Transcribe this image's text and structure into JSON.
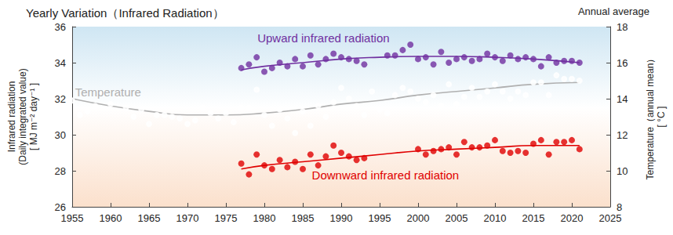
{
  "chart_data": {
    "type": "scatter",
    "title": "Yearly Variation（Infrared Radiation）",
    "subtitle": "Annual average",
    "y_label": "Infrared radiation\n(Daily integrated value)\n[ MJ m⁻² day⁻¹ ]",
    "y2_label": "Temperature（annual mean）\n[ °C ]",
    "xlim": [
      1955,
      2025
    ],
    "xticks": [
      1955,
      1960,
      1965,
      1970,
      1975,
      1980,
      1985,
      1990,
      1995,
      2000,
      2005,
      2010,
      2015,
      2020,
      2025
    ],
    "ylim": [
      26,
      36
    ],
    "yticks": [
      26,
      28,
      30,
      32,
      34,
      36
    ],
    "y2lim": [
      8,
      18
    ],
    "y2ticks": [
      8,
      10,
      12,
      14,
      16,
      18
    ],
    "grid": false,
    "series": [
      {
        "name": "Upward infrared radiation",
        "color": "#7030a0",
        "marker": "circle",
        "x": [
          1977,
          1978,
          1979,
          1980,
          1981,
          1982,
          1983,
          1984,
          1985,
          1986,
          1987,
          1988,
          1989,
          1990,
          1991,
          1992,
          1993,
          1994,
          1995,
          1996,
          1997,
          1998,
          1999,
          2000,
          2001,
          2002,
          2003,
          2004,
          2005,
          2006,
          2007,
          2008,
          2009,
          2010,
          2011,
          2012,
          2013,
          2014,
          2015,
          2016,
          2017,
          2018,
          2019,
          2020,
          2021
        ],
        "values": [
          33.7,
          33.9,
          34.3,
          33.5,
          33.7,
          34.0,
          33.8,
          34.2,
          33.8,
          34.4,
          33.9,
          34.2,
          34.5,
          34.3,
          34.2,
          34.1,
          33.9,
          null,
          null,
          34.4,
          34.4,
          34.7,
          35.0,
          34.2,
          34.3,
          33.9,
          34.6,
          34.0,
          34.2,
          34.3,
          34.1,
          34.2,
          34.5,
          34.3,
          34.1,
          34.4,
          34.2,
          34.3,
          34.2,
          33.8,
          34.3,
          34.0,
          34.1,
          34.1,
          34.0
        ],
        "trend": {
          "x": [
            1977,
            1980,
            1985,
            1990,
            1995,
            2000,
            2005,
            2010,
            2015,
            2021
          ],
          "values": [
            33.6,
            33.8,
            34.0,
            34.2,
            34.3,
            34.35,
            34.35,
            34.3,
            34.2,
            34.0
          ]
        }
      },
      {
        "name": "Temperature",
        "color": "#b0b0b0",
        "marker": "open_circle",
        "axis": "y2",
        "x": [
          1955,
          1956,
          1957,
          1958,
          1959,
          1960,
          1961,
          1962,
          1963,
          1964,
          1965,
          1966,
          1967,
          1968,
          1969,
          1970,
          1971,
          1972,
          1973,
          1974,
          1975,
          1976,
          1977,
          1978,
          1979,
          1980,
          1981,
          1982,
          1983,
          1984,
          1985,
          1986,
          1987,
          1988,
          1989,
          1990,
          1991,
          1992,
          1993,
          1994,
          1995,
          1996,
          1997,
          1998,
          1999,
          2000,
          2001,
          2002,
          2003,
          2004,
          2005,
          2006,
          2007,
          2008,
          2009,
          2010,
          2011,
          2012,
          2013,
          2014,
          2015,
          2016,
          2017,
          2018,
          2019,
          2020,
          2021
        ],
        "values": [
          13.9,
          13.1,
          13.3,
          13.6,
          14.3,
          13.7,
          14.2,
          13.5,
          13.0,
          13.4,
          12.6,
          13.1,
          13.1,
          13.0,
          12.9,
          12.6,
          12.8,
          13.5,
          13.2,
          12.9,
          13.2,
          12.7,
          13.5,
          13.5,
          14.5,
          13.1,
          12.5,
          13.4,
          12.9,
          12.1,
          13.3,
          12.5,
          13.6,
          13.0,
          13.8,
          14.6,
          14.0,
          13.6,
          13.1,
          14.4,
          13.4,
          13.2,
          14.2,
          14.6,
          14.4,
          14.0,
          13.8,
          14.2,
          13.6,
          14.8,
          13.7,
          14.1,
          14.6,
          14.1,
          14.4,
          14.8,
          14.4,
          14.0,
          14.4,
          14.2,
          14.9,
          14.9,
          14.2,
          15.3,
          15.1,
          15.1,
          15.0
        ],
        "trend": {
          "x": [
            1955,
            1960,
            1965,
            1970,
            1975,
            1980,
            1985,
            1990,
            1995,
            2000,
            2005,
            2010,
            2015,
            2021
          ],
          "values": [
            14.0,
            13.6,
            13.3,
            13.1,
            13.1,
            13.2,
            13.4,
            13.7,
            13.9,
            14.2,
            14.4,
            14.6,
            14.8,
            14.9
          ]
        }
      },
      {
        "name": "Downward infrared radiation",
        "color": "#e00000",
        "marker": "circle",
        "x": [
          1977,
          1978,
          1979,
          1980,
          1981,
          1982,
          1983,
          1984,
          1985,
          1986,
          1987,
          1988,
          1989,
          1990,
          1991,
          1992,
          1993,
          1994,
          1995,
          1996,
          1997,
          1998,
          1999,
          2000,
          2001,
          2002,
          2003,
          2004,
          2005,
          2006,
          2007,
          2008,
          2009,
          2010,
          2011,
          2012,
          2013,
          2014,
          2015,
          2016,
          2017,
          2018,
          2019,
          2020,
          2021
        ],
        "values": [
          28.4,
          27.8,
          28.9,
          28.3,
          28.1,
          28.6,
          28.2,
          28.5,
          28.1,
          28.9,
          28.3,
          28.8,
          29.4,
          29.0,
          28.8,
          28.6,
          28.7,
          null,
          null,
          null,
          null,
          null,
          null,
          29.2,
          28.9,
          29.1,
          29.2,
          29.3,
          28.9,
          29.6,
          29.3,
          29.3,
          29.4,
          29.7,
          29.1,
          29.0,
          29.1,
          29.0,
          29.5,
          29.7,
          28.9,
          29.6,
          29.6,
          29.7,
          29.2
        ],
        "trend": {
          "x": [
            1977,
            1980,
            1985,
            1990,
            1995,
            2000,
            2005,
            2010,
            2015,
            2021
          ],
          "values": [
            28.1,
            28.3,
            28.5,
            28.7,
            28.9,
            29.1,
            29.2,
            29.3,
            29.4,
            29.4
          ]
        }
      }
    ]
  }
}
